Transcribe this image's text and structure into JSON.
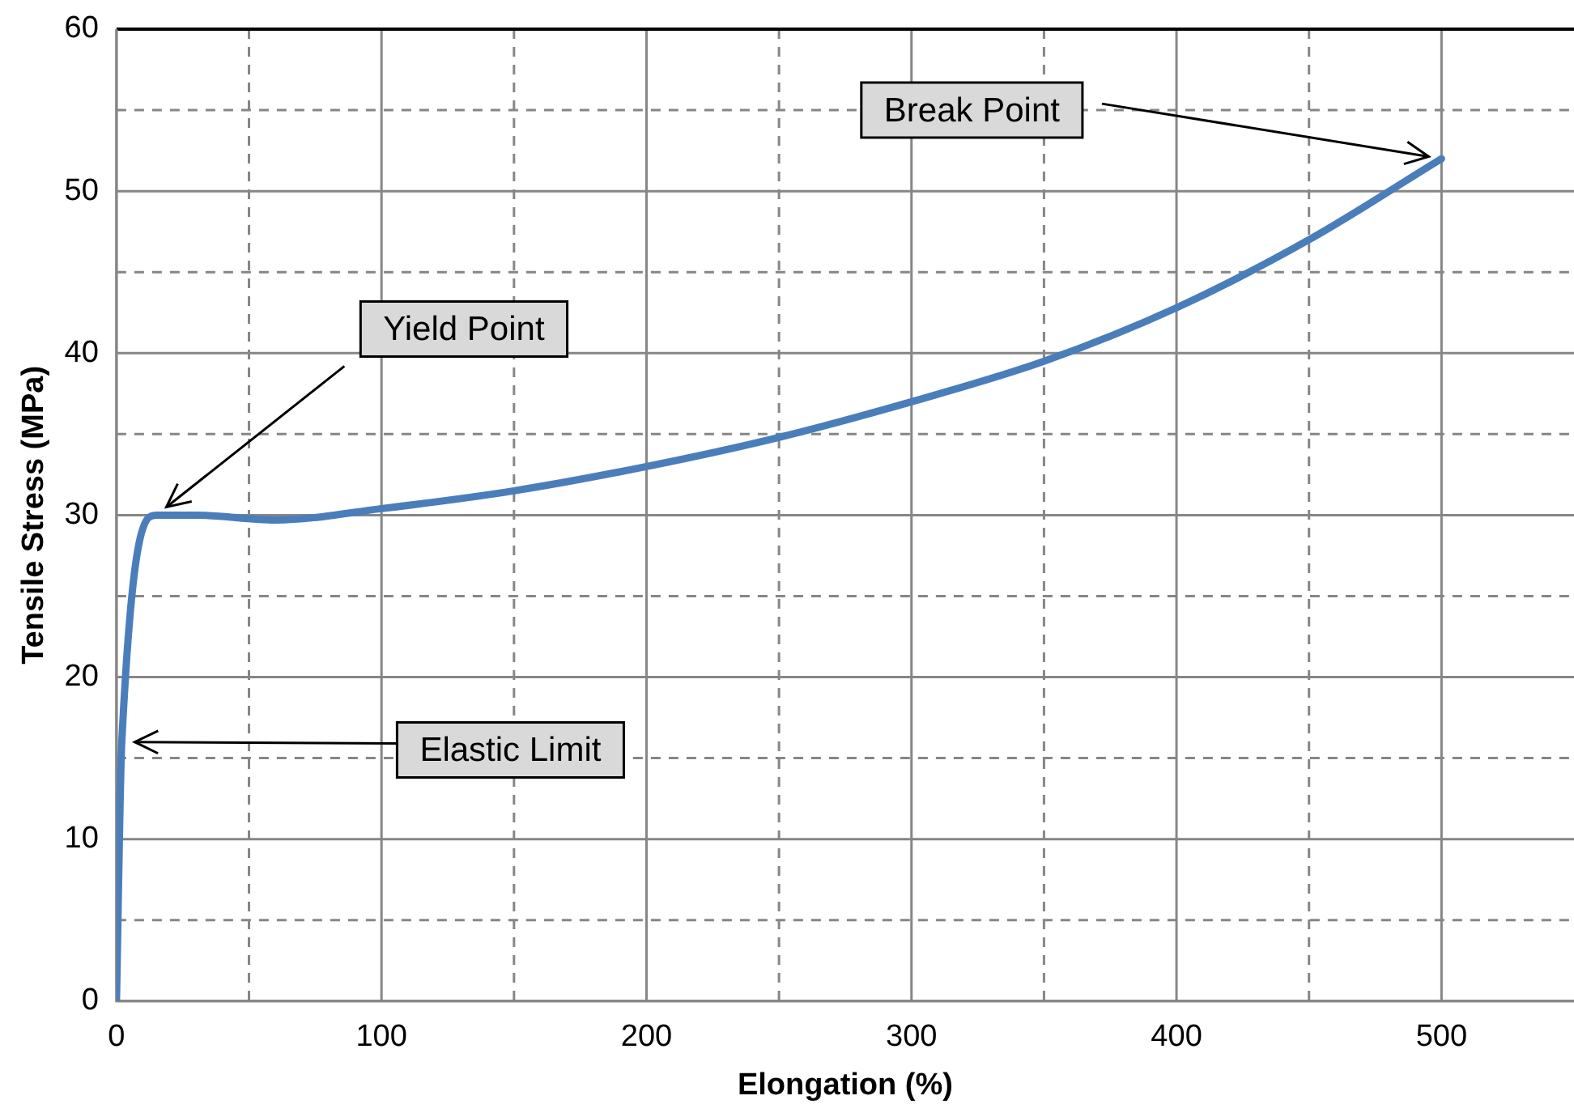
{
  "chart_data": {
    "type": "line",
    "xlabel": "Elongation (%)",
    "ylabel": "Tensile Stress (MPa)",
    "series": [
      {
        "color": "#4a7ebb",
        "x": [
          0,
          2,
          15,
          30,
          60,
          100,
          150,
          200,
          250,
          300,
          350,
          400,
          450,
          500
        ],
        "values": [
          0,
          16,
          30,
          30,
          29.7,
          30.4,
          31.5,
          33,
          34.8,
          37,
          39.5,
          42.8,
          47,
          52
        ]
      }
    ],
    "xlim": [
      0,
      550
    ],
    "xticks": [
      0,
      {
        "value": 50,
        "label": null
      },
      100,
      {
        "value": 150,
        "label": null
      },
      200,
      {
        "value": 250,
        "label": null
      },
      300,
      {
        "value": 350,
        "label": null
      },
      400,
      {
        "value": 450,
        "label": null
      },
      500
    ],
    "ylim": [
      0,
      60
    ],
    "yticks": [
      0,
      {
        "value": 5,
        "label": null
      },
      10,
      {
        "value": 15,
        "label": null
      },
      20,
      {
        "value": 25,
        "label": null
      },
      30,
      {
        "value": 35,
        "label": null
      },
      40,
      {
        "value": 45,
        "label": null
      },
      50,
      {
        "value": 55,
        "label": null
      },
      60
    ],
    "grid": true,
    "legend": false,
    "marker": "none",
    "line_style": "solid",
    "annotations": [
      {
        "text": "Break Point",
        "x": 500,
        "y": 52
      },
      {
        "text": "Yield Point",
        "x": 15,
        "y": 30
      },
      {
        "text": "Elastic Limit",
        "x": 2,
        "y": 16
      }
    ]
  }
}
